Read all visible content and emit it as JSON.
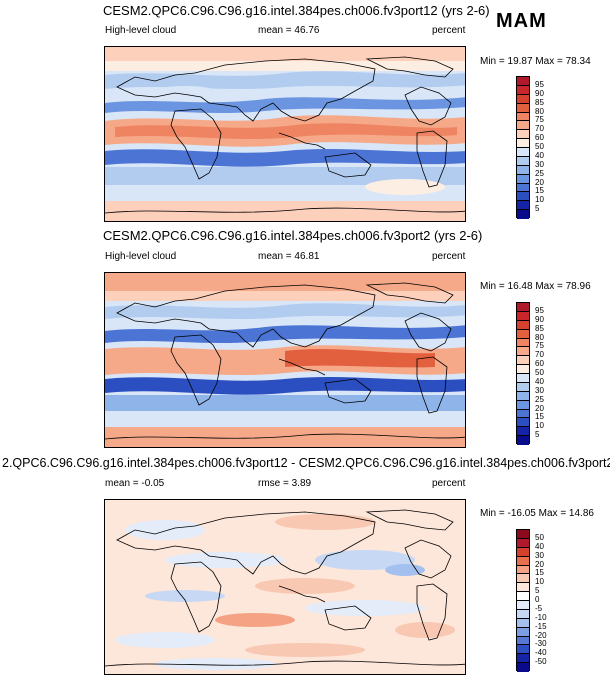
{
  "season": "MAM",
  "panels": [
    {
      "title": "CESM2.QPC6.C96.C96.g16.intel.384pes.ch006.fv3port12 (yrs 2-6)",
      "left_label": "High-level cloud",
      "stat_text": "mean =  46.76",
      "units": "percent",
      "minmax": "Min = 19.87 Max = 78.34",
      "levels": [
        "95",
        "90",
        "85",
        "80",
        "75",
        "70",
        "60",
        "50",
        "40",
        "30",
        "25",
        "20",
        "15",
        "10",
        "5"
      ],
      "colors": [
        "#b2182b",
        "#c8262b",
        "#d6412e",
        "#e3603f",
        "#ee8462",
        "#f6a989",
        "#fcd0ba",
        "#fdeee4",
        "#d8e6f7",
        "#b2ccf0",
        "#8fb4ea",
        "#6b95e0",
        "#4c74d4",
        "#2b4fc0",
        "#1524a6",
        "#0a0a8c"
      ]
    },
    {
      "title": "CESM2.QPC6.C96.C96.g16.intel.384pes.ch006.fv3port2 (yrs 2-6)",
      "left_label": "High-level cloud",
      "stat_text": "mean =  46.81",
      "units": "percent",
      "minmax": "Min = 16.48 Max = 78.96",
      "levels": [
        "95",
        "90",
        "85",
        "80",
        "75",
        "70",
        "60",
        "50",
        "40",
        "30",
        "25",
        "20",
        "15",
        "10",
        "5"
      ],
      "colors": [
        "#b2182b",
        "#c8262b",
        "#d6412e",
        "#e3603f",
        "#ee8462",
        "#f6a989",
        "#fcd0ba",
        "#fdeee4",
        "#d8e6f7",
        "#b2ccf0",
        "#8fb4ea",
        "#6b95e0",
        "#4c74d4",
        "#2b4fc0",
        "#1524a6",
        "#0a0a8c"
      ]
    },
    {
      "title": "2.QPC6.C96.C96.g16.intel.384pes.ch006.fv3port12 - CESM2.QPC6.C96.C96.g16.intel.384pes.ch006.fv3port2",
      "left_label": "mean =  -0.05",
      "stat_text": "rmse =  3.89",
      "units": "percent",
      "minmax": "Min = -16.05 Max = 14.86",
      "levels": [
        "50",
        "40",
        "30",
        "20",
        "15",
        "10",
        "5",
        "0",
        "-5",
        "-10",
        "-15",
        "-20",
        "-30",
        "-40",
        "-50"
      ],
      "colors": [
        "#8b0a1c",
        "#b2182b",
        "#d6412e",
        "#e8704f",
        "#f4a283",
        "#f9c8b2",
        "#fde6da",
        "#ffffff",
        "#e4ecfa",
        "#c7d8f5",
        "#a4c0ee",
        "#7c9fe3",
        "#5578d4",
        "#2e4fc2",
        "#1524a6",
        "#0a0a8c"
      ]
    }
  ]
}
